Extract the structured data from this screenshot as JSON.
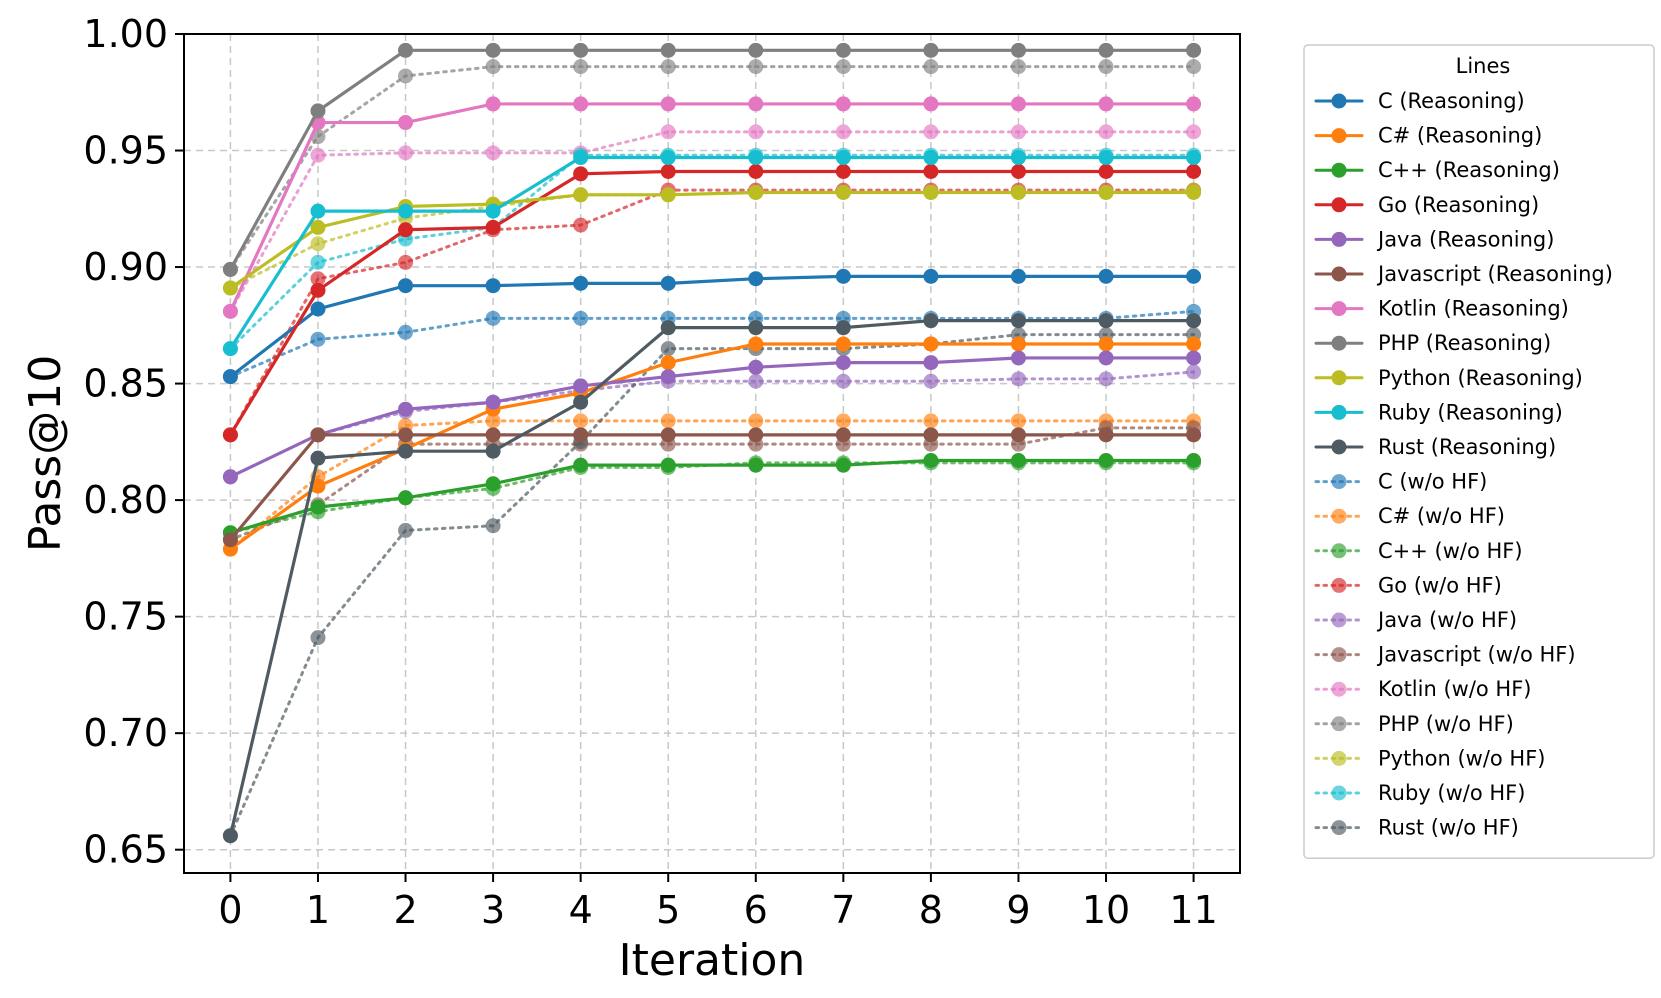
{
  "chart_data": {
    "type": "line",
    "xlabel": "Iteration",
    "ylabel": "Pass@10",
    "x": [
      0,
      1,
      2,
      3,
      4,
      5,
      6,
      7,
      8,
      9,
      10,
      11
    ],
    "xlim": [
      -0.53,
      11.53
    ],
    "ylim": [
      0.64,
      1.0
    ],
    "yticks": [
      0.65,
      0.7,
      0.75,
      0.8,
      0.85,
      0.9,
      0.95,
      1.0
    ],
    "ytick_labels": [
      "0.65",
      "0.70",
      "0.75",
      "0.80",
      "0.85",
      "0.90",
      "0.95",
      "1.00"
    ],
    "xtick_labels": [
      "0",
      "1",
      "2",
      "3",
      "4",
      "5",
      "6",
      "7",
      "8",
      "9",
      "10",
      "11"
    ],
    "grid": true,
    "legend": {
      "title": "Lines",
      "placement": "outside-right"
    },
    "series": [
      {
        "name": "C (Reasoning)",
        "color": "#1f77b4",
        "style": "solid",
        "values": [
          0.853,
          0.882,
          0.892,
          0.892,
          0.893,
          0.893,
          0.895,
          0.896,
          0.896,
          0.896,
          0.896,
          0.896
        ]
      },
      {
        "name": "C# (Reasoning)",
        "color": "#ff7f0e",
        "style": "solid",
        "values": [
          0.779,
          0.806,
          0.822,
          0.839,
          0.846,
          0.859,
          0.867,
          0.867,
          0.867,
          0.867,
          0.867,
          0.867
        ]
      },
      {
        "name": "C++ (Reasoning)",
        "color": "#2ca02c",
        "style": "solid",
        "values": [
          0.786,
          0.797,
          0.801,
          0.807,
          0.815,
          0.815,
          0.815,
          0.815,
          0.817,
          0.817,
          0.817,
          0.817
        ]
      },
      {
        "name": "Go (Reasoning)",
        "color": "#d62728",
        "style": "solid",
        "values": [
          0.828,
          0.89,
          0.916,
          0.917,
          0.94,
          0.941,
          0.941,
          0.941,
          0.941,
          0.941,
          0.941,
          0.941
        ]
      },
      {
        "name": "Java (Reasoning)",
        "color": "#9467bd",
        "style": "solid",
        "values": [
          0.81,
          0.828,
          0.839,
          0.842,
          0.849,
          0.853,
          0.857,
          0.859,
          0.859,
          0.861,
          0.861,
          0.861
        ]
      },
      {
        "name": "Javascript (Reasoning)",
        "color": "#8c564b",
        "style": "solid",
        "values": [
          0.783,
          0.828,
          0.828,
          0.828,
          0.828,
          0.828,
          0.828,
          0.828,
          0.828,
          0.828,
          0.828,
          0.828
        ]
      },
      {
        "name": "Kotlin (Reasoning)",
        "color": "#e377c2",
        "style": "solid",
        "values": [
          0.881,
          0.962,
          0.962,
          0.97,
          0.97,
          0.97,
          0.97,
          0.97,
          0.97,
          0.97,
          0.97,
          0.97
        ]
      },
      {
        "name": "PHP (Reasoning)",
        "color": "#7f7f7f",
        "style": "solid",
        "values": [
          0.899,
          0.967,
          0.993,
          0.993,
          0.993,
          0.993,
          0.993,
          0.993,
          0.993,
          0.993,
          0.993,
          0.993
        ]
      },
      {
        "name": "Python (Reasoning)",
        "color": "#bcbd22",
        "style": "solid",
        "values": [
          0.891,
          0.917,
          0.926,
          0.927,
          0.931,
          0.931,
          0.932,
          0.932,
          0.932,
          0.932,
          0.932,
          0.932
        ]
      },
      {
        "name": "Ruby (Reasoning)",
        "color": "#17becf",
        "style": "solid",
        "values": [
          0.865,
          0.924,
          0.924,
          0.924,
          0.947,
          0.947,
          0.947,
          0.947,
          0.947,
          0.947,
          0.947,
          0.947
        ]
      },
      {
        "name": "Rust (Reasoning)",
        "color": "#4f5b62",
        "style": "solid",
        "values": [
          0.656,
          0.818,
          0.821,
          0.821,
          0.842,
          0.874,
          0.874,
          0.874,
          0.877,
          0.877,
          0.877,
          0.877
        ]
      },
      {
        "name": "C (w/o HF)",
        "color": "#1f77b4",
        "style": "dotted",
        "values": [
          0.853,
          0.869,
          0.872,
          0.878,
          0.878,
          0.878,
          0.878,
          0.878,
          0.878,
          0.878,
          0.878,
          0.881
        ]
      },
      {
        "name": "C# (w/o HF)",
        "color": "#ff7f0e",
        "style": "dotted",
        "values": [
          0.779,
          0.81,
          0.832,
          0.834,
          0.834,
          0.834,
          0.834,
          0.834,
          0.834,
          0.834,
          0.834,
          0.834
        ]
      },
      {
        "name": "C++ (w/o HF)",
        "color": "#2ca02c",
        "style": "dotted",
        "values": [
          0.786,
          0.795,
          0.801,
          0.805,
          0.814,
          0.814,
          0.816,
          0.816,
          0.816,
          0.816,
          0.816,
          0.816
        ]
      },
      {
        "name": "Go (w/o HF)",
        "color": "#d62728",
        "style": "dotted",
        "values": [
          0.828,
          0.895,
          0.902,
          0.916,
          0.918,
          0.933,
          0.933,
          0.933,
          0.933,
          0.933,
          0.933,
          0.933
        ]
      },
      {
        "name": "Java (w/o HF)",
        "color": "#9467bd",
        "style": "dotted",
        "values": [
          0.81,
          0.828,
          0.838,
          0.842,
          0.847,
          0.851,
          0.851,
          0.851,
          0.851,
          0.852,
          0.852,
          0.855
        ]
      },
      {
        "name": "Javascript (w/o HF)",
        "color": "#8c564b",
        "style": "dotted",
        "values": [
          0.783,
          0.798,
          0.824,
          0.824,
          0.824,
          0.824,
          0.824,
          0.824,
          0.824,
          0.824,
          0.831,
          0.831
        ]
      },
      {
        "name": "Kotlin (w/o HF)",
        "color": "#e377c2",
        "style": "dotted",
        "values": [
          0.881,
          0.948,
          0.949,
          0.949,
          0.949,
          0.958,
          0.958,
          0.958,
          0.958,
          0.958,
          0.958,
          0.958
        ]
      },
      {
        "name": "PHP (w/o HF)",
        "color": "#7f7f7f",
        "style": "dotted",
        "values": [
          0.899,
          0.956,
          0.982,
          0.986,
          0.986,
          0.986,
          0.986,
          0.986,
          0.986,
          0.986,
          0.986,
          0.986
        ]
      },
      {
        "name": "Python (w/o HF)",
        "color": "#bcbd22",
        "style": "dotted",
        "values": [
          0.891,
          0.91,
          0.921,
          0.926,
          0.931,
          0.931,
          0.932,
          0.932,
          0.932,
          0.932,
          0.932,
          0.933
        ]
      },
      {
        "name": "Ruby (w/o HF)",
        "color": "#17becf",
        "style": "dotted",
        "values": [
          0.865,
          0.902,
          0.912,
          0.917,
          0.948,
          0.948,
          0.948,
          0.948,
          0.948,
          0.948,
          0.948,
          0.948
        ]
      },
      {
        "name": "Rust (w/o HF)",
        "color": "#4f5b62",
        "style": "dotted",
        "values": [
          0.656,
          0.741,
          0.787,
          0.789,
          0.825,
          0.865,
          0.865,
          0.865,
          0.867,
          0.871,
          0.871,
          0.871
        ]
      }
    ]
  }
}
